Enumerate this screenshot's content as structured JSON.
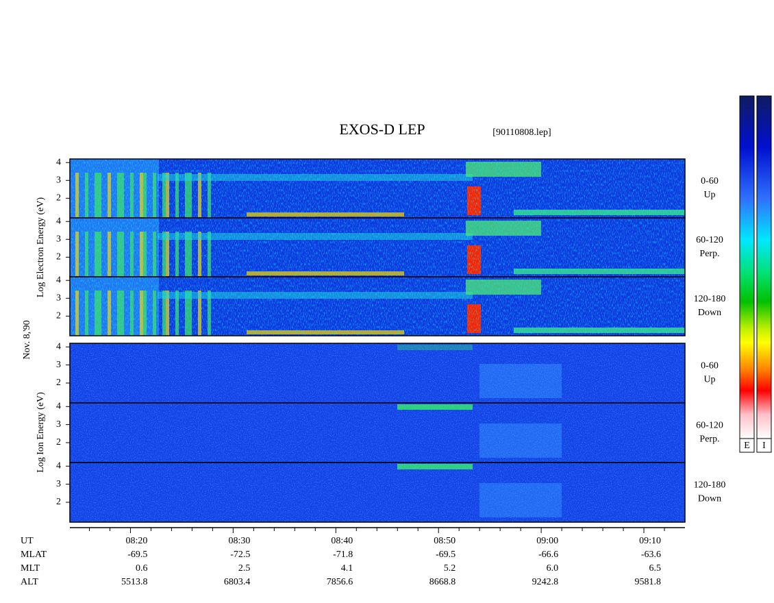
{
  "title": "EXOS-D LEP",
  "file": "[90110808.lep]",
  "date_label": "Nov. 8,'90",
  "electron_axis_label": "Log  Electron  Energy (eV)",
  "ion_axis_label": "Log  Ion  Energy (eV)",
  "ylim": [
    0.9,
    4.2
  ],
  "yticks": [
    2,
    3,
    4
  ],
  "panels": [
    {
      "pitch": "0-60",
      "direction": "Up"
    },
    {
      "pitch": "60-120",
      "direction": "Perp."
    },
    {
      "pitch": "120-180",
      "direction": "Down"
    },
    {
      "pitch": "0-60",
      "direction": "Up"
    },
    {
      "pitch": "60-120",
      "direction": "Perp."
    },
    {
      "pitch": "120-180",
      "direction": "Down"
    }
  ],
  "xlim": [
    494.1,
    554
  ],
  "xticks": [
    {
      "value": 500,
      "label": "08:20"
    },
    {
      "value": 510,
      "label": "08:30"
    },
    {
      "value": 520,
      "label": "08:40"
    },
    {
      "value": 530,
      "label": "08:50"
    },
    {
      "value": 540,
      "label": "09:00"
    },
    {
      "value": 550,
      "label": "09:10"
    }
  ],
  "minor_xticks": [
    496,
    498,
    502,
    504,
    506,
    508,
    512,
    514,
    516,
    518,
    522,
    524,
    526,
    528,
    532,
    534,
    536,
    538,
    542,
    544,
    546,
    548,
    552
  ],
  "x_row_name": "UT",
  "ephemeris": [
    {
      "name": "MLAT",
      "values": [
        "-69.5",
        "-72.5",
        "-71.8",
        "-69.5",
        "-66.6",
        "-63.6"
      ]
    },
    {
      "name": "MLT",
      "values": [
        "0.6",
        "2.5",
        "4.1",
        "5.2",
        "6.0",
        "6.5"
      ]
    },
    {
      "name": "ALT",
      "values": [
        "5513.8",
        "6803.4",
        "7856.6",
        "8668.8",
        "9242.8",
        "9581.8"
      ]
    }
  ],
  "colorbar": {
    "labels": [
      "E",
      "I"
    ]
  }
}
